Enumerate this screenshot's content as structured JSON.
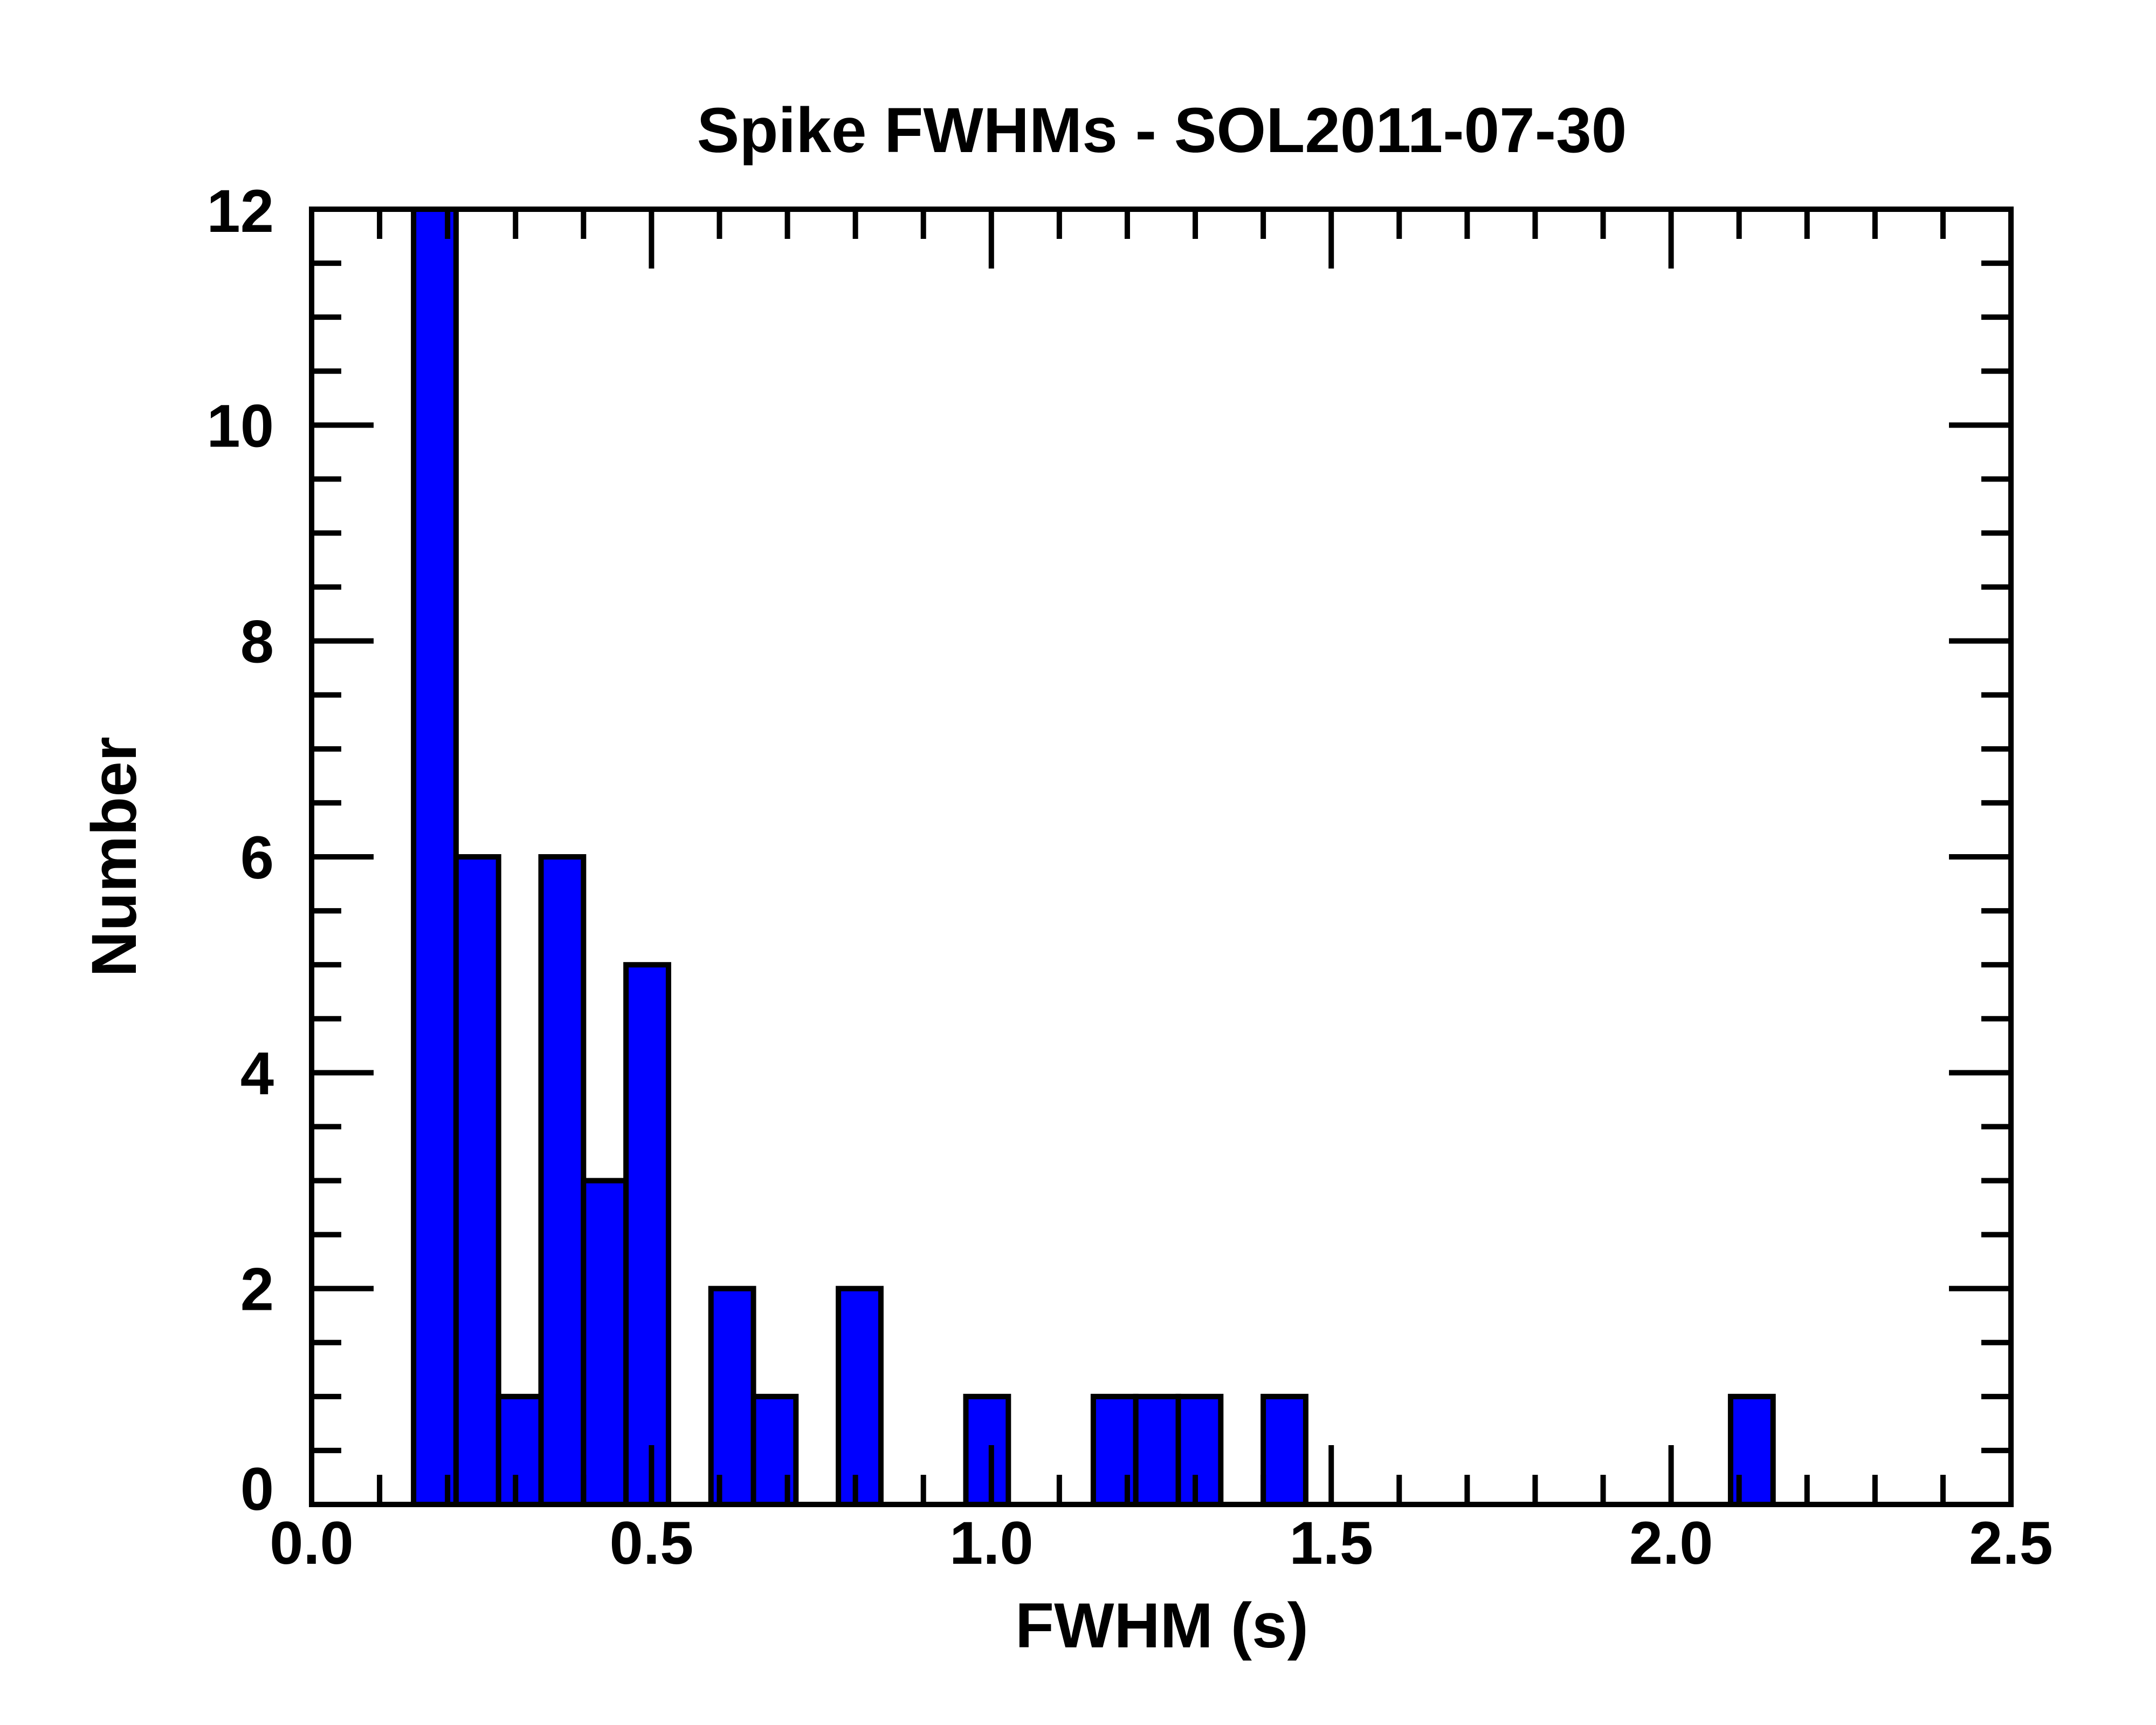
{
  "chart_data": {
    "type": "bar",
    "title": "Spike FWHMs - SOL2011-07-30",
    "xlabel": "FWHM (s)",
    "ylabel": "Number",
    "xlim": [
      0.0,
      2.5
    ],
    "ylim": [
      0,
      12
    ],
    "x_ticks": [
      "0.0",
      "0.5",
      "1.0",
      "1.5",
      "2.0",
      "2.5"
    ],
    "y_ticks": [
      "0",
      "2",
      "4",
      "6",
      "8",
      "10",
      "12"
    ],
    "bin_width": 0.0625,
    "bins": [
      {
        "x0": 0.15,
        "value": 12
      },
      {
        "x0": 0.2125,
        "value": 6
      },
      {
        "x0": 0.275,
        "value": 1
      },
      {
        "x0": 0.3375,
        "value": 6
      },
      {
        "x0": 0.4,
        "value": 3
      },
      {
        "x0": 0.4625,
        "value": 5
      },
      {
        "x0": 0.5875,
        "value": 2
      },
      {
        "x0": 0.65,
        "value": 1
      },
      {
        "x0": 0.775,
        "value": 2
      },
      {
        "x0": 0.9625,
        "value": 1
      },
      {
        "x0": 1.15,
        "value": 1
      },
      {
        "x0": 1.2125,
        "value": 1
      },
      {
        "x0": 1.275,
        "value": 1
      },
      {
        "x0": 1.4,
        "value": 1
      },
      {
        "x0": 2.0875,
        "value": 1
      }
    ],
    "bar_color": "#0000ff",
    "edge_color": "#000000",
    "grid": false,
    "legend": "none"
  }
}
